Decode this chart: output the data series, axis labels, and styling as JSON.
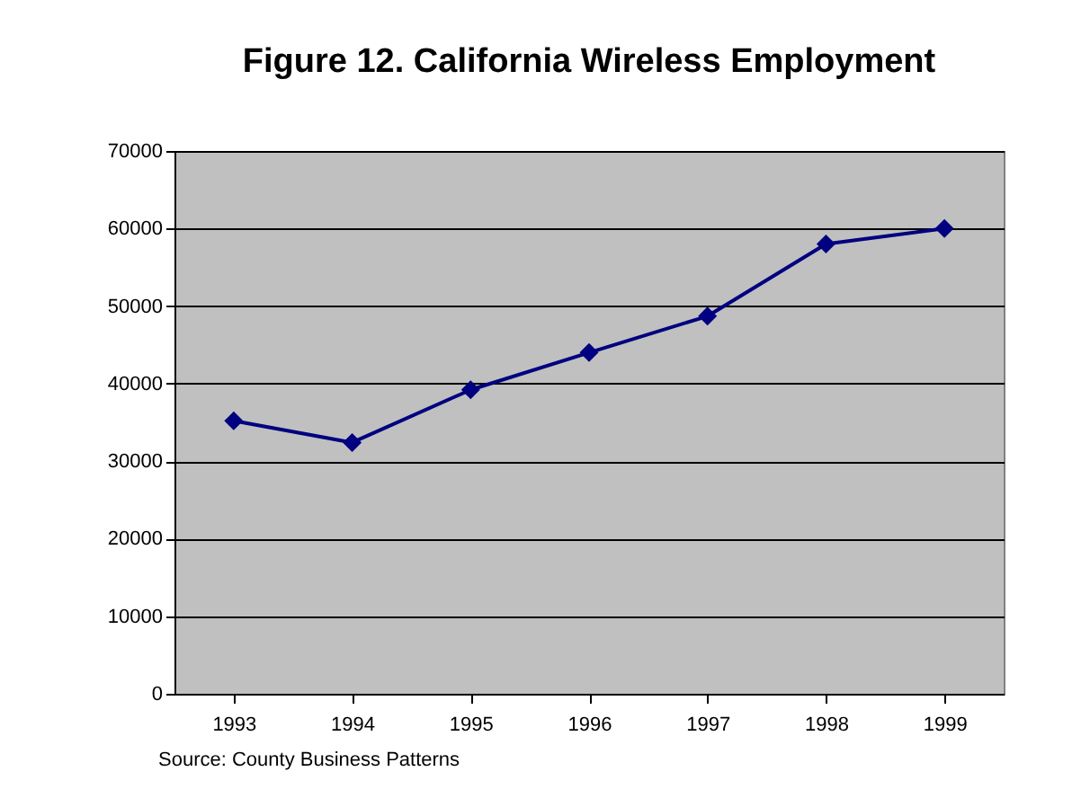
{
  "chart_data": {
    "type": "line",
    "title": "Figure 12.  California Wireless Employment",
    "categories": [
      "1993",
      "1994",
      "1995",
      "1996",
      "1997",
      "1998",
      "1999"
    ],
    "series": [
      {
        "color": "#000080",
        "values": [
          35200,
          32400,
          39200,
          44000,
          48700,
          58000,
          60000
        ]
      }
    ],
    "ylim": [
      0,
      70000
    ],
    "yticks": [
      0,
      10000,
      20000,
      30000,
      40000,
      50000,
      60000,
      70000
    ],
    "grid": "y",
    "marker": "diamond",
    "line_style": "solid",
    "annotations": [
      "Source: County Business Patterns"
    ]
  }
}
